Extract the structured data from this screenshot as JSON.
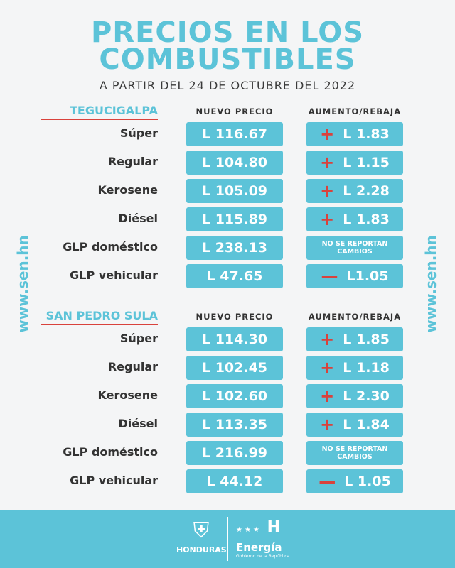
{
  "header": {
    "title_line1": "PRECIOS EN LOS",
    "title_line2": "COMBUSTIBLES",
    "subtitle": "A PARTIR DEL 24 DE OCTUBRE DEL 2022"
  },
  "columns": {
    "price": "NUEVO PRECIO",
    "change": "AUMENTO/REBAJA"
  },
  "sections": [
    {
      "city": "TEGUCIGALPA",
      "rows": [
        {
          "fuel": "Súper",
          "price": "L 116.67",
          "sign": "+",
          "change": "L 1.83"
        },
        {
          "fuel": "Regular",
          "price": "L 104.80",
          "sign": "+",
          "change": "L 1.15"
        },
        {
          "fuel": "Kerosene",
          "price": "L 105.09",
          "sign": "+",
          "change": "L 2.28"
        },
        {
          "fuel": "Diésel",
          "price": "L 115.89",
          "sign": "+",
          "change": "L 1.83"
        },
        {
          "fuel": "GLP doméstico",
          "price": "L 238.13",
          "sign": "",
          "change": "NO SE REPORTAN CAMBIOS"
        },
        {
          "fuel": "GLP vehicular",
          "price": "L 47.65",
          "sign": "—",
          "change": "L1.05"
        }
      ]
    },
    {
      "city": "SAN PEDRO SULA",
      "rows": [
        {
          "fuel": "Súper",
          "price": "L 114.30",
          "sign": "+",
          "change": "L 1.85"
        },
        {
          "fuel": "Regular",
          "price": "L 102.45",
          "sign": "+",
          "change": "L 1.18"
        },
        {
          "fuel": "Kerosene",
          "price": "L 102.60",
          "sign": "+",
          "change": "L 2.30"
        },
        {
          "fuel": "Diésel",
          "price": "L 113.35",
          "sign": "+",
          "change": "L 1.84"
        },
        {
          "fuel": "GLP doméstico",
          "price": "L 216.99",
          "sign": "",
          "change": "NO SE REPORTAN CAMBIOS"
        },
        {
          "fuel": "GLP vehicular",
          "price": "L 44.12",
          "sign": "—",
          "change": "L 1.05"
        }
      ]
    }
  ],
  "side_text": "www.sen.hn",
  "footer": {
    "honduras": "HONDURAS",
    "energia": "Energía",
    "energia_sub": "Gobierno de la República"
  },
  "colors": {
    "accent": "#5cc3d8",
    "increase": "#d9423c",
    "background": "#f4f5f6"
  }
}
